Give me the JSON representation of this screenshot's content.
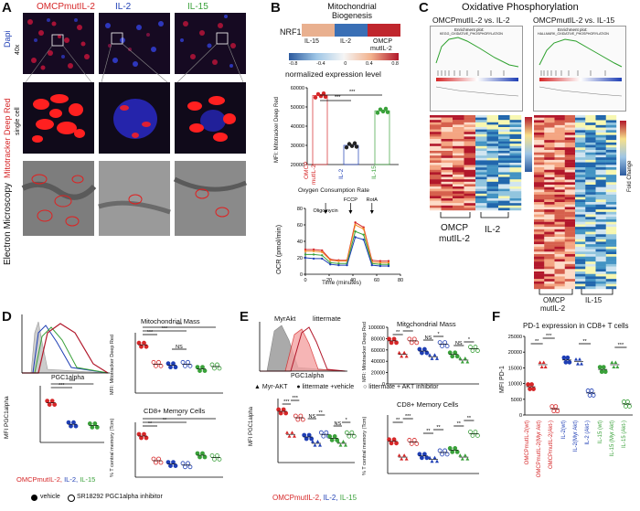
{
  "panelA": {
    "letter": "A",
    "conditions": [
      "OMCPmutIL-2",
      "IL-2",
      "IL-15"
    ],
    "cond_colors": [
      "#d62728",
      "#1f3fb5",
      "#3aa13a"
    ],
    "ylabels": {
      "dapi": "Dapi",
      "mito": "Mitotracker Deep Red",
      "mag": "40x",
      "single": "single cell",
      "em": "Electron Microscopy"
    }
  },
  "panelB": {
    "letter": "B",
    "title": "Mitochondrial\nBiogenesis",
    "title_l1": "Mitochondrial",
    "title_l2": "Biogenesis",
    "gene": "NRF1",
    "heat_cols": [
      "IL-15",
      "IL-2",
      "OMCP mutIL-2"
    ],
    "heat_col1": "IL-15",
    "heat_col2": "IL-2",
    "heat_col3a": "OMCP",
    "heat_col3b": "mutIL-2",
    "scale_ticks": [
      "-0.8",
      "-0.4",
      "0",
      "0.4",
      "0.8"
    ],
    "scale_label": "normalized expression level",
    "mfi_ylabel": "MFI: Mitotracker Deep Red",
    "mfi_yticks": [
      "20000",
      "30000",
      "40000",
      "50000",
      "60000"
    ],
    "mfi_groups": [
      "OMCP mutIL-2",
      "IL-2",
      "IL-15"
    ],
    "grp1a": "OMCP",
    "grp1b": "mutIL-2",
    "grp2": "IL-2",
    "grp3": "IL-15",
    "stars": "***",
    "ocr_title": "Oxygen Consumption Rate",
    "ocr_ylabel": "OCR (pmol/min)",
    "ocr_xlabel": "Time (minutes)",
    "ocr_yticks": [
      "0",
      "20",
      "40",
      "60",
      "80"
    ],
    "ocr_xticks": [
      "0",
      "20",
      "40",
      "60",
      "80"
    ],
    "injections": [
      "Oligomycin",
      "FCCP",
      "RotA"
    ]
  },
  "panelC": {
    "letter": "C",
    "title": "Oxidative Phosphorylation",
    "comp1": "OMCPmutIL-2 vs. IL-2",
    "comp2": "OMCPmutIL-2 vs. IL-15",
    "gsea1": "KEGG_OXIDATIVE_PHOSPHORYLATION",
    "gsea2": "HALLMARK_OXIDATIVE_PHOSPHORYLATION",
    "enrich": "Enrichment plot:",
    "fold": "Fold Change",
    "hm1_groups": [
      "OMCP mutIL-2",
      "IL-2"
    ],
    "h1g1a": "OMCP",
    "h1g1b": "mutIL-2",
    "h1g2": "IL-2",
    "h2g1a": "OMCP",
    "h2g1b": "mutIL-2",
    "h2g2": "IL-15"
  },
  "panelD": {
    "letter": "D",
    "hist_xlabel": "PGC1alpha",
    "pgc_ylabel": "MFI PGC1alpha",
    "mass_title": "Mitochondrial Mass",
    "mass_ylabel": "MFI: Mitotracker Deep Red",
    "mem_title": "CD8+ Memory Cells",
    "mem_ylabel": "% T central memory (Tcm)",
    "ns": "NS",
    "stars2": "**",
    "stars3": "***",
    "legend_cond1": "OMCPmutIL-2,",
    "legend_cond2": " IL-2,",
    "legend_cond3": " IL-15",
    "legend_vehicle": "vehicle",
    "legend_inhib": "SR18292 PGC1alpha inhibitor"
  },
  "panelE": {
    "letter": "E",
    "hist_labels": [
      "MyrAkt",
      "littermate"
    ],
    "hl1": "MyrAkt",
    "hl2": "littermate",
    "hist_xlabel": "PGC1alpha",
    "mass_title": "Mitochondrial Mass",
    "mass_ylabel": "MFI: Mitotracker Deep Red",
    "mass_yticks": [
      "0",
      "20000",
      "40000",
      "60000",
      "80000",
      "100000"
    ],
    "legend_a": "Myr-AKT",
    "legend_b": "littermate +vehicle",
    "legend_c": "littermate + AKT inhibitor",
    "pgc_ylabel": "MFI PGC1alpha",
    "mem_title": "CD8+ Memory Cells",
    "mem_ylabel": "% T central memory (Tcm)",
    "legend_cond1": "OMCPmutIL-2,",
    "legend_cond2": " IL-2,",
    "legend_cond3": " IL-15"
  },
  "panelF": {
    "letter": "F",
    "title": "PD-1 expression in CD8+ T cells",
    "ylabel": "MFI PD-1",
    "yticks": [
      "0",
      "5000",
      "10000",
      "15000",
      "20000",
      "25000"
    ],
    "categories": [
      "OMCPmutIL-2(wt)",
      "OMCPmutIL-2(Myr Akt)",
      "OMCPmutIL-2(Akt-)",
      "IL-2(wt)",
      "IL-2(Myr Akt)",
      "IL-2 (Akt-)",
      "IL-15 (wt)",
      "IL-15 (Myr Akt)",
      "IL-15 (Akt-)"
    ],
    "cat0": "OMCPmutIL-2(wt)",
    "cat1": "OMCPmutIL-2(Myr Akt)",
    "cat2": "OMCPmutIL-2(Akt-)",
    "cat3": "IL-2(wt)",
    "cat4": "IL-2(Myr Akt)",
    "cat5": "IL-2 (Akt-)",
    "cat6": "IL-15 (wt)",
    "cat7": "IL-15 (Myr Akt)",
    "cat8": "IL-15 (Akt-)",
    "sig": [
      "**",
      "***",
      "**",
      "***"
    ]
  },
  "chart_data": [
    {
      "type": "scatter",
      "title": "",
      "ylabel": "MFI: Mitotracker Deep Red",
      "categories": [
        "OMCP mutIL-2",
        "IL-2",
        "IL-15"
      ],
      "ylim": [
        20000,
        60000
      ],
      "series": [
        {
          "values": [
            56000,
            30000,
            48000
          ]
        }
      ]
    },
    {
      "type": "line",
      "title": "Oxygen Consumption Rate",
      "xlabel": "Time (minutes)",
      "ylabel": "OCR (pmol/min)",
      "x": [
        0,
        7,
        14,
        21,
        28,
        35,
        42,
        49,
        56,
        63,
        70
      ],
      "xlim": [
        0,
        80
      ],
      "ylim": [
        0,
        80
      ],
      "series": [
        {
          "color": "#d62728",
          "values": [
            30,
            30,
            29,
            18,
            17,
            17,
            63,
            57,
            17,
            16,
            16
          ]
        },
        {
          "color": "#f28c28",
          "values": [
            28,
            28,
            27,
            17,
            16,
            16,
            60,
            55,
            15,
            14,
            14
          ]
        },
        {
          "color": "#3aa13a",
          "values": [
            24,
            24,
            23,
            14,
            13,
            13,
            52,
            48,
            13,
            12,
            12
          ]
        },
        {
          "color": "#1f3fb5",
          "values": [
            20,
            19,
            19,
            12,
            11,
            11,
            45,
            42,
            11,
            10,
            10
          ]
        }
      ]
    },
    {
      "type": "scatter",
      "title": "PD-1 expression in CD8+ T cells",
      "ylabel": "MFI PD-1",
      "categories": [
        "OMCPmutIL-2(wt)",
        "OMCPmutIL-2(Myr Akt)",
        "OMCPmutIL-2(Akt-)",
        "IL-2(wt)",
        "IL-2(Myr Akt)",
        "IL-2 (Akt-)",
        "IL-15 (wt)",
        "IL-15 (Myr Akt)",
        "IL-15 (Akt-)"
      ],
      "ylim": [
        0,
        25000
      ],
      "series": [
        {
          "values": [
            9000,
            16000,
            2000,
            17500,
            17000,
            7000,
            14500,
            16000,
            3500
          ]
        }
      ]
    }
  ]
}
